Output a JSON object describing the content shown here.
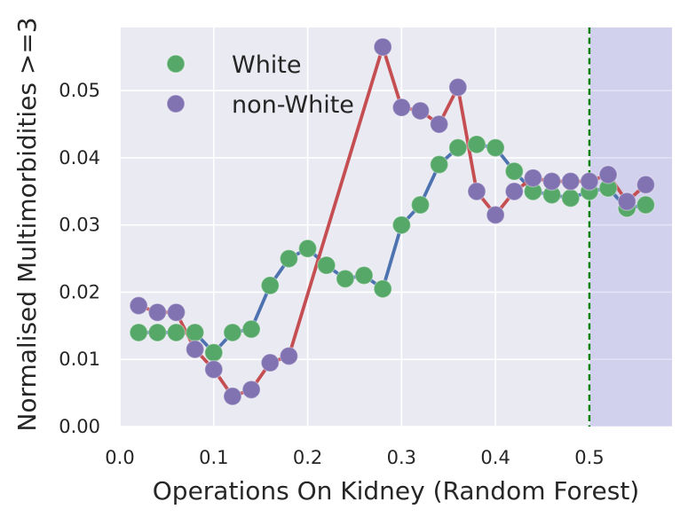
{
  "figure": {
    "background_color": "#ffffff",
    "plot_background_color": "#eaeaf2",
    "gridline_color": "#ffffff",
    "text_color": "#262626"
  },
  "chart_data": {
    "type": "line",
    "title": "",
    "xlabel": "Operations On Kidney (Random Forest)",
    "ylabel": "Normalised Multimorbidities >=3",
    "xlim": [
      0,
      0.588
    ],
    "ylim": [
      0,
      0.0594
    ],
    "grid": true,
    "xticks": {
      "labels": [
        "0.0",
        "0.1",
        "0.2",
        "0.3",
        "0.4",
        "0.5"
      ],
      "values": [
        0,
        0.1,
        0.2,
        0.3,
        0.4,
        0.5
      ]
    },
    "yticks": {
      "labels": [
        "0.00",
        "0.01",
        "0.02",
        "0.03",
        "0.04",
        "0.05"
      ],
      "values": [
        0,
        0.01,
        0.02,
        0.03,
        0.04,
        0.05
      ]
    },
    "legend": {
      "position": "upper-left",
      "entries": [
        {
          "label": "White",
          "color": "#55a868"
        },
        {
          "label": "non-White",
          "color": "#8172b2"
        }
      ]
    },
    "series": [
      {
        "name": "White",
        "marker": "circle",
        "marker_color": "#55a868",
        "line_color": "#4c72b0",
        "x": [
          0.02,
          0.04,
          0.06,
          0.08,
          0.1,
          0.12,
          0.14,
          0.16,
          0.18,
          0.2,
          0.22,
          0.24,
          0.26,
          0.28,
          0.3,
          0.32,
          0.34,
          0.36,
          0.38,
          0.4,
          0.42,
          0.44,
          0.46,
          0.48,
          0.5,
          0.52,
          0.54,
          0.56
        ],
        "y": [
          0.014,
          0.014,
          0.014,
          0.014,
          0.011,
          0.014,
          0.0145,
          0.021,
          0.025,
          0.0265,
          0.024,
          0.022,
          0.0225,
          0.0205,
          0.03,
          0.033,
          0.039,
          0.0415,
          0.042,
          0.0415,
          0.038,
          0.035,
          0.0345,
          0.034,
          0.035,
          0.0355,
          0.0325,
          0.033
        ]
      },
      {
        "name": "non-White",
        "marker": "circle",
        "marker_color": "#8172b2",
        "line_color": "#c44e52",
        "x": [
          0.02,
          0.04,
          0.06,
          0.08,
          0.1,
          0.12,
          0.14,
          0.16,
          0.18,
          0.28,
          0.3,
          0.32,
          0.34,
          0.36,
          0.38,
          0.4,
          0.42,
          0.44,
          0.46,
          0.48,
          0.5,
          0.52,
          0.54,
          0.56
        ],
        "y": [
          0.018,
          0.017,
          0.017,
          0.0115,
          0.0085,
          0.0045,
          0.0055,
          0.0095,
          0.0105,
          0.0565,
          0.0475,
          0.047,
          0.045,
          0.0505,
          0.035,
          0.0315,
          0.035,
          0.037,
          0.0365,
          0.0365,
          0.0365,
          0.0375,
          0.0335,
          0.036
        ]
      }
    ],
    "vline": {
      "x": 0.5,
      "color": "#008000",
      "style": "dashed"
    },
    "vspan": {
      "from": 0.5,
      "to": 0.588,
      "fill": "rgba(100,100,215,0.18)"
    }
  }
}
